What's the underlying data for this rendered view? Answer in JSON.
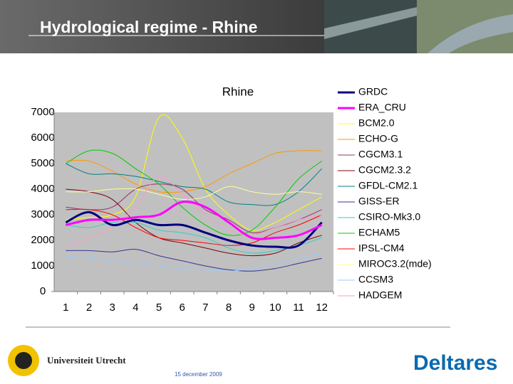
{
  "header": {
    "title": "Hydrological regime - Rhine"
  },
  "chart_data": {
    "type": "line",
    "title": "Rhine",
    "categories": [
      "1",
      "2",
      "3",
      "4",
      "5",
      "6",
      "7",
      "8",
      "9",
      "10",
      "11",
      "12"
    ],
    "ylim": [
      0,
      7000
    ],
    "yticks": [
      0,
      1000,
      2000,
      3000,
      4000,
      5000,
      6000,
      7000
    ],
    "grid": false,
    "legend": "right",
    "series": [
      {
        "name": "GRDC",
        "color": "#000080",
        "line_width": 3,
        "values": [
          2700,
          3100,
          2600,
          2800,
          2600,
          2600,
          2300,
          2000,
          1800,
          1750,
          1800,
          2700
        ]
      },
      {
        "name": "ERA_CRU",
        "color": "#ff00ff",
        "line_width": 3,
        "values": [
          2600,
          2800,
          2800,
          2900,
          3000,
          3500,
          3300,
          2700,
          2100,
          2100,
          2200,
          2600
        ]
      },
      {
        "name": "BCM2.0",
        "color": "#ffff00",
        "line_width": 1,
        "values": [
          2800,
          2900,
          3000,
          3700,
          6800,
          6000,
          4000,
          3000,
          2400,
          2700,
          3200,
          3700
        ]
      },
      {
        "name": "ECHO-G",
        "color": "#ff9900",
        "line_width": 1,
        "values": [
          5100,
          5100,
          4700,
          4200,
          3900,
          3900,
          4100,
          4600,
          5000,
          5400,
          5500,
          5500
        ]
      },
      {
        "name": "CGCM3.1",
        "color": "#993366",
        "line_width": 1,
        "values": [
          3300,
          3200,
          3300,
          4000,
          4200,
          4000,
          3200,
          2800,
          2300,
          2500,
          2800,
          3200
        ]
      },
      {
        "name": "CGCM2.3.2",
        "color": "#800000",
        "line_width": 1,
        "values": [
          4000,
          3900,
          3600,
          2700,
          2100,
          1900,
          1700,
          1500,
          1400,
          1500,
          1900,
          2200
        ]
      },
      {
        "name": "GFDL-CM2.1",
        "color": "#008080",
        "line_width": 1,
        "values": [
          5000,
          4600,
          4600,
          4500,
          4300,
          4100,
          4000,
          3500,
          3400,
          3400,
          3900,
          4800
        ]
      },
      {
        "name": "GISS-ER",
        "color": "#333399",
        "line_width": 1,
        "values": [
          1600,
          1600,
          1550,
          1650,
          1400,
          1200,
          1000,
          850,
          800,
          900,
          1100,
          1300
        ]
      },
      {
        "name": "CSIRO-Mk3.0",
        "color": "#33cccc",
        "line_width": 1,
        "values": [
          2600,
          2500,
          2700,
          2700,
          2400,
          2300,
          2100,
          1700,
          1500,
          1600,
          1800,
          2100
        ]
      },
      {
        "name": "ECHAM5",
        "color": "#00cc00",
        "line_width": 1,
        "values": [
          5000,
          5500,
          5400,
          4800,
          4200,
          3300,
          2600,
          2200,
          2400,
          3300,
          4400,
          5100
        ]
      },
      {
        "name": "IPSL-CM4",
        "color": "#ff0000",
        "line_width": 1,
        "values": [
          3200,
          3200,
          3000,
          2500,
          2100,
          2000,
          1900,
          1800,
          1900,
          2300,
          2600,
          3000
        ]
      },
      {
        "name": "MIROC3.2(mde)",
        "color": "#ffff99",
        "line_width": 1,
        "values": [
          3900,
          3900,
          4000,
          4000,
          3800,
          3600,
          3700,
          4100,
          3900,
          3800,
          3900,
          3800
        ]
      },
      {
        "name": "CCSM3",
        "color": "#99ccff",
        "line_width": 1,
        "values": [
          1400,
          1300,
          1200,
          1100,
          1000,
          900,
          850,
          800,
          900,
          1100,
          1300,
          1500
        ]
      },
      {
        "name": "HADGEM",
        "color": "#ff99cc",
        "line_width": 1,
        "values": [
          1700,
          2100,
          2500,
          3300,
          4500,
          3800,
          3000,
          2400,
          2200,
          2500,
          2800,
          3000
        ]
      }
    ]
  },
  "footer": {
    "university": "Universiteit Utrecht",
    "date": "15 december 2009",
    "company": "Deltares"
  }
}
